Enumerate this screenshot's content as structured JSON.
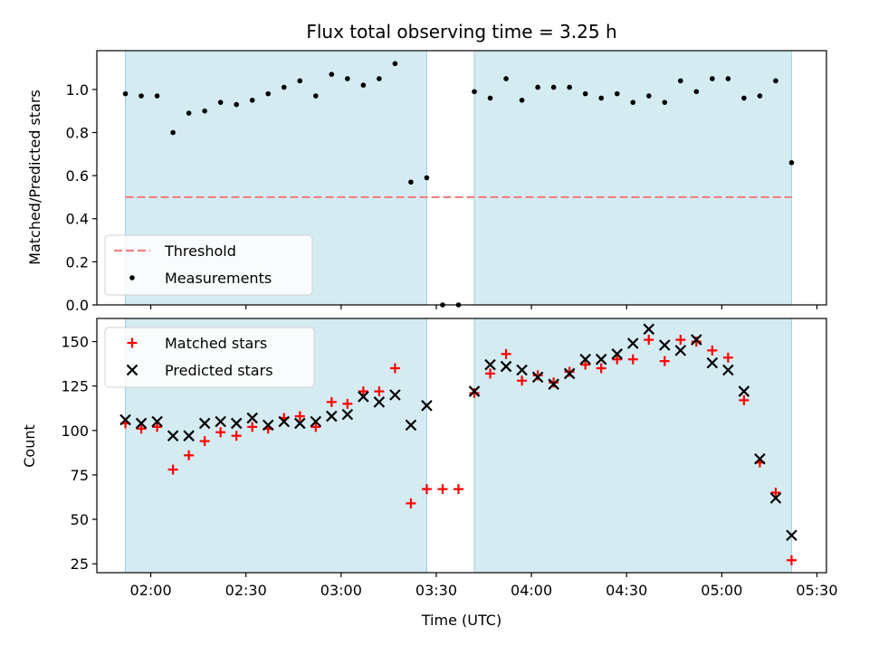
{
  "chart_data": [
    {
      "type": "scatter",
      "title": "Flux total observing time = 3.25 h",
      "xlabel": "",
      "ylabel": "Matched/Predicted stars",
      "ylim": [
        0,
        1.18
      ],
      "yticks": [
        0.0,
        0.2,
        0.4,
        0.6,
        0.8,
        1.0
      ],
      "ytick_labels": [
        "0.0",
        "0.2",
        "0.4",
        "0.6",
        "0.8",
        "1.0"
      ],
      "threshold": 0.5,
      "threshold_label": "Threshold",
      "threshold_color": "#f08080",
      "legend_position": "lower-left",
      "series": [
        {
          "name": "Measurements",
          "color": "#000000",
          "x": [
            "01:52",
            "01:57",
            "02:02",
            "02:07",
            "02:12",
            "02:17",
            "02:22",
            "02:27",
            "02:32",
            "02:37",
            "02:42",
            "02:47",
            "02:52",
            "02:57",
            "03:02",
            "03:07",
            "03:12",
            "03:17",
            "03:22",
            "03:27",
            "03:32",
            "03:37",
            "03:42",
            "03:47",
            "03:52",
            "03:57",
            "04:02",
            "04:07",
            "04:12",
            "04:17",
            "04:22",
            "04:27",
            "04:32",
            "04:37",
            "04:42",
            "04:47",
            "04:52",
            "04:57",
            "05:02",
            "05:07",
            "05:12",
            "05:17",
            "05:22"
          ],
          "values": [
            0.98,
            0.97,
            0.97,
            0.8,
            0.89,
            0.9,
            0.94,
            0.93,
            0.95,
            0.98,
            1.01,
            1.04,
            0.97,
            1.07,
            1.05,
            1.02,
            1.05,
            1.12,
            0.57,
            0.59,
            0.0,
            0.0,
            0.99,
            0.96,
            1.05,
            0.95,
            1.01,
            1.01,
            1.01,
            0.98,
            0.96,
            0.98,
            0.94,
            0.97,
            0.94,
            1.04,
            0.99,
            1.05,
            1.05,
            0.96,
            0.97,
            1.04,
            0.66
          ]
        }
      ],
      "shaded_intervals": [
        [
          "01:52",
          "03:27"
        ],
        [
          "03:42",
          "05:22"
        ]
      ],
      "shade_color": "#add8e6"
    },
    {
      "type": "scatter",
      "title": "",
      "xlabel": "Time (UTC)",
      "ylabel": "Count",
      "ylim": [
        20,
        163
      ],
      "yticks": [
        25,
        50,
        75,
        100,
        125,
        150
      ],
      "ytick_labels": [
        "25",
        "50",
        "75",
        "100",
        "125",
        "150"
      ],
      "xlim": [
        "01:43",
        "05:33"
      ],
      "xticks": [
        "02:00",
        "02:30",
        "03:00",
        "03:30",
        "04:00",
        "04:30",
        "05:00",
        "05:30"
      ],
      "legend_position": "upper-left",
      "series": [
        {
          "name": "Matched stars",
          "color": "#ff0000",
          "marker": "+",
          "x": [
            "01:52",
            "01:57",
            "02:02",
            "02:07",
            "02:12",
            "02:17",
            "02:22",
            "02:27",
            "02:32",
            "02:37",
            "02:42",
            "02:47",
            "02:52",
            "02:57",
            "03:02",
            "03:07",
            "03:12",
            "03:17",
            "03:22",
            "03:27",
            "03:32",
            "03:37",
            "03:42",
            "03:47",
            "03:52",
            "03:57",
            "04:02",
            "04:07",
            "04:12",
            "04:17",
            "04:22",
            "04:27",
            "04:32",
            "04:37",
            "04:42",
            "04:47",
            "04:52",
            "04:57",
            "05:02",
            "05:07",
            "05:12",
            "05:17",
            "05:22"
          ],
          "values": [
            104,
            101,
            102,
            78,
            86,
            94,
            99,
            97,
            102,
            101,
            107,
            108,
            102,
            116,
            115,
            122,
            122,
            135,
            59,
            67,
            67,
            67,
            121,
            132,
            143,
            128,
            131,
            127,
            133,
            137,
            135,
            140,
            140,
            151,
            139,
            151,
            150,
            145,
            141,
            117,
            82,
            65,
            27
          ]
        },
        {
          "name": "Predicted stars",
          "color": "#000000",
          "marker": "x",
          "x": [
            "01:52",
            "01:57",
            "02:02",
            "02:07",
            "02:12",
            "02:17",
            "02:22",
            "02:27",
            "02:32",
            "02:37",
            "02:42",
            "02:47",
            "02:52",
            "02:57",
            "03:02",
            "03:07",
            "03:12",
            "03:17",
            "03:22",
            "03:27",
            "03:42",
            "03:47",
            "03:52",
            "03:57",
            "04:02",
            "04:07",
            "04:12",
            "04:17",
            "04:22",
            "04:27",
            "04:32",
            "04:37",
            "04:42",
            "04:47",
            "04:52",
            "04:57",
            "05:02",
            "05:07",
            "05:12",
            "05:17",
            "05:22"
          ],
          "values": [
            106,
            104,
            105,
            97,
            97,
            104,
            105,
            104,
            107,
            103,
            105,
            104,
            105,
            108,
            109,
            119,
            116,
            120,
            103,
            114,
            122,
            137,
            136,
            134,
            130,
            126,
            132,
            140,
            140,
            143,
            149,
            157,
            148,
            145,
            151,
            138,
            134,
            122,
            84,
            62,
            41
          ]
        }
      ],
      "shaded_intervals": [
        [
          "01:52",
          "03:27"
        ],
        [
          "03:42",
          "05:22"
        ]
      ],
      "shade_color": "#add8e6"
    }
  ]
}
